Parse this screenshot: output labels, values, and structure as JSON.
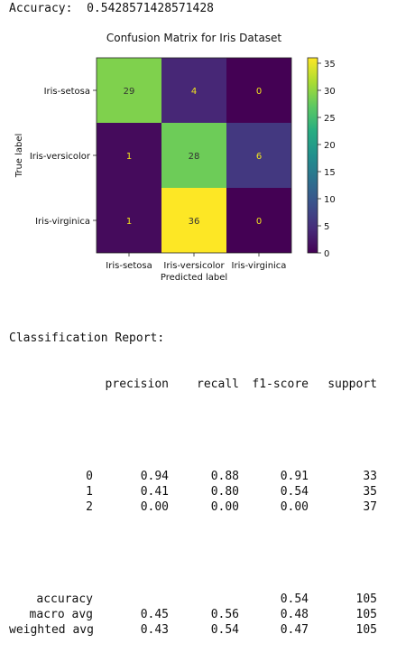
{
  "accuracy": {
    "label": "Accuracy:",
    "value": "0.5428571428571428"
  },
  "chart_data": {
    "type": "heatmap",
    "title": "Confusion Matrix for Iris Dataset",
    "xlabel": "Predicted label",
    "ylabel": "True label",
    "rows": [
      "Iris-setosa",
      "Iris-versicolor",
      "Iris-virginica"
    ],
    "cols": [
      "Iris-setosa",
      "Iris-versicolor",
      "Iris-virginica"
    ],
    "values": [
      [
        29,
        4,
        0
      ],
      [
        1,
        28,
        6
      ],
      [
        1,
        36,
        0
      ]
    ],
    "colormap": "viridis",
    "colorbar": {
      "ticks": [
        0,
        5,
        10,
        15,
        20,
        25,
        30,
        35
      ],
      "min": 0,
      "max": 36
    },
    "text_dark": "#333333",
    "text_light": "#f2e51d"
  },
  "report": {
    "title": "Classification Report:",
    "headers": [
      "precision",
      "recall",
      "f1-score",
      "support"
    ],
    "class_rows": [
      {
        "label": "0",
        "precision": "0.94",
        "recall": "0.88",
        "f1": "0.91",
        "support": "33"
      },
      {
        "label": "1",
        "precision": "0.41",
        "recall": "0.80",
        "f1": "0.54",
        "support": "35"
      },
      {
        "label": "2",
        "precision": "0.00",
        "recall": "0.00",
        "f1": "0.00",
        "support": "37"
      }
    ],
    "summary_rows": [
      {
        "label": "accuracy",
        "precision": "",
        "recall": "",
        "f1": "0.54",
        "support": "105"
      },
      {
        "label": "macro avg",
        "precision": "0.45",
        "recall": "0.56",
        "f1": "0.48",
        "support": "105"
      },
      {
        "label": "weighted avg",
        "precision": "0.43",
        "recall": "0.54",
        "f1": "0.47",
        "support": "105"
      }
    ]
  }
}
